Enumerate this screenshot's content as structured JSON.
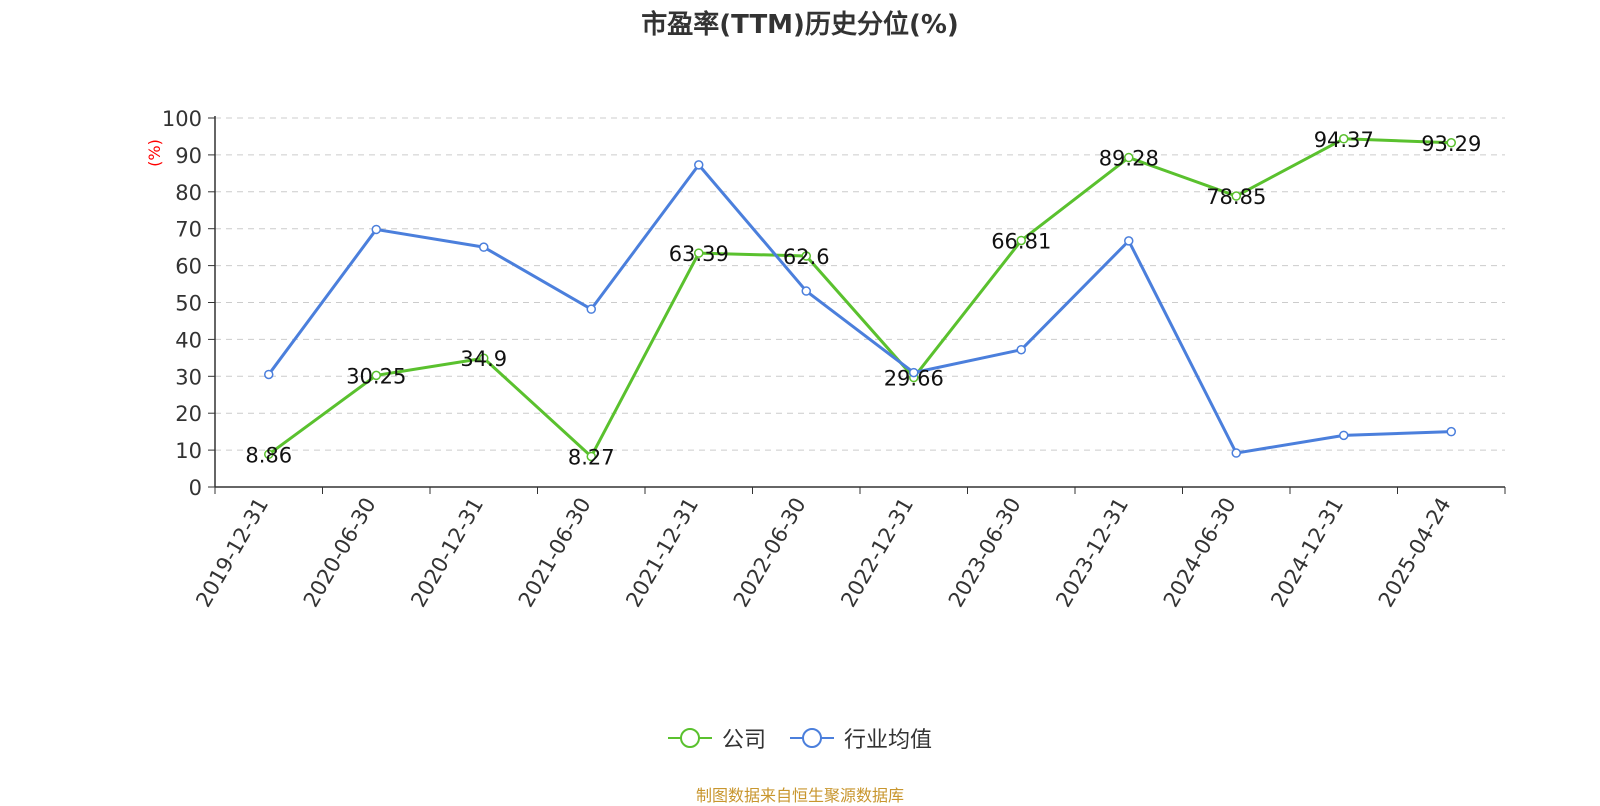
{
  "title": "市盈率(TTM)历史分位(%)",
  "source_note": "制图数据来自恒生聚源数据库",
  "colors": {
    "company": "#5ac12e",
    "industry": "#4b7fdc",
    "ylabel": "#ff0000",
    "source": "#c8962e"
  },
  "chart_data": {
    "type": "line",
    "title": "市盈率(TTM)历史分位(%)",
    "xlabel": "",
    "ylabel": "(%)",
    "ylim": [
      0,
      100
    ],
    "yticks": [
      0,
      10,
      20,
      30,
      40,
      50,
      60,
      70,
      80,
      90,
      100
    ],
    "grid": true,
    "legend_position": "bottom-center",
    "categories": [
      "2019-12-31",
      "2020-06-30",
      "2020-12-31",
      "2021-06-30",
      "2021-12-31",
      "2022-06-30",
      "2022-12-31",
      "2023-06-30",
      "2023-12-31",
      "2024-06-30",
      "2024-12-31",
      "2025-04-24"
    ],
    "series": [
      {
        "name": "公司",
        "values": [
          8.86,
          30.25,
          34.9,
          8.27,
          63.39,
          62.6,
          29.66,
          66.81,
          89.28,
          78.85,
          94.37,
          93.29
        ],
        "labels_shown": true
      },
      {
        "name": "行业均值",
        "values": [
          30.5,
          69.8,
          65.0,
          48.2,
          87.3,
          53.1,
          31.0,
          37.2,
          66.7,
          9.2,
          14.0,
          15.0
        ],
        "labels_shown": false
      }
    ]
  }
}
